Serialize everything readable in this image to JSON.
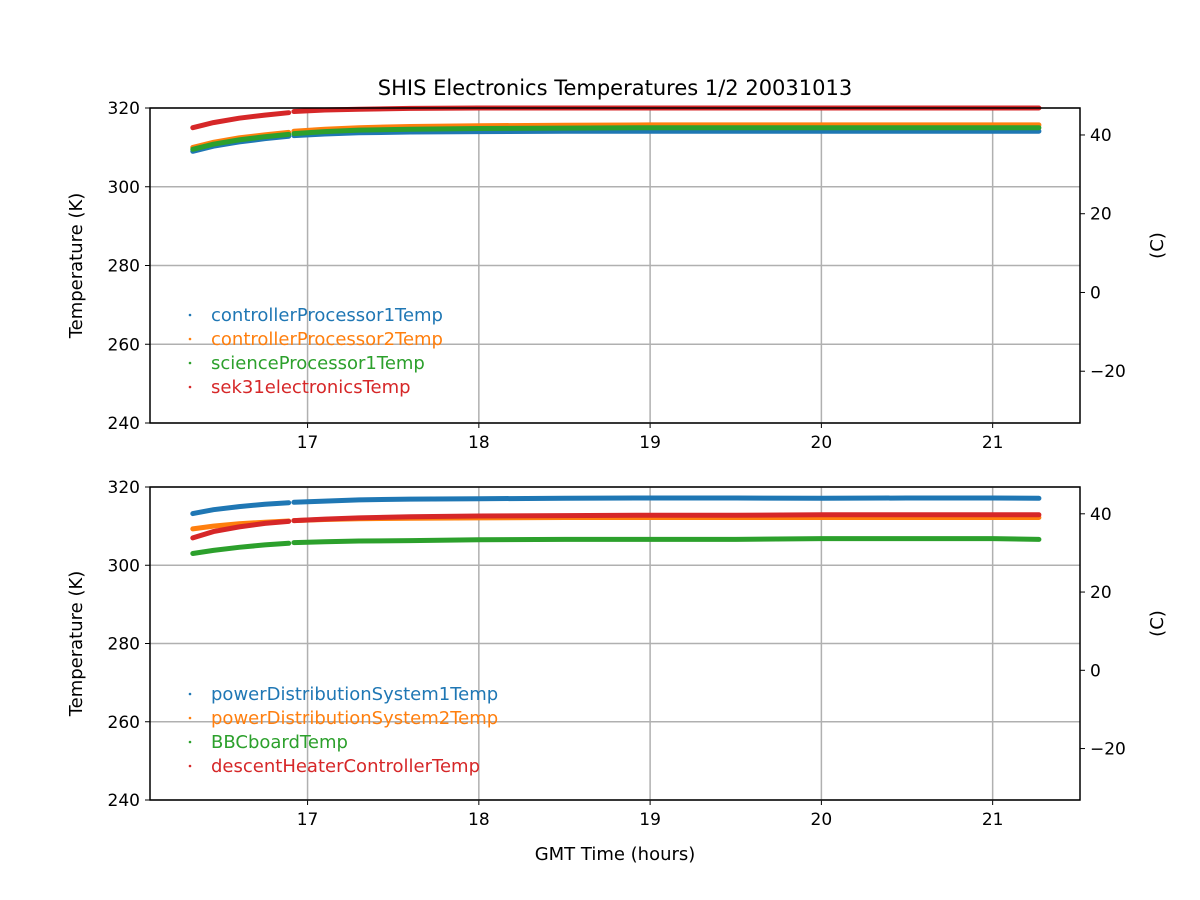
{
  "chart_data": [
    {
      "type": "scatter",
      "title": "SHIS Electronics Temperatures 1/2 20031013",
      "xlabel": "",
      "ylabel": "Temperature (K)",
      "ylabel_right": "(C)",
      "xlim": [
        16.08,
        21.51
      ],
      "ylim": [
        240,
        320
      ],
      "xticks": [
        17,
        18,
        19,
        20,
        21
      ],
      "yticks": [
        240,
        260,
        280,
        300,
        320
      ],
      "yticks_right": [
        -20,
        0,
        20,
        40
      ],
      "grid": true,
      "legend_placement": "lower-left",
      "x": [
        16.33,
        16.45,
        16.6,
        16.75,
        16.89,
        null,
        16.92,
        17.1,
        17.3,
        17.6,
        18,
        18.5,
        19,
        19.5,
        20,
        20.5,
        21,
        21.27
      ],
      "series": [
        {
          "name": "controllerProcessor1Temp",
          "color": "#1f77b4",
          "values": [
            309,
            310.3,
            311.4,
            312.2,
            312.8,
            null,
            313,
            313.4,
            313.7,
            313.9,
            314,
            314.1,
            314.1,
            314.1,
            314.1,
            314.1,
            314.1,
            314.1
          ]
        },
        {
          "name": "controllerProcessor2Temp",
          "color": "#ff7f0e",
          "values": [
            310,
            311.3,
            312.4,
            313.2,
            313.8,
            null,
            314.1,
            314.6,
            315,
            315.3,
            315.5,
            315.6,
            315.7,
            315.7,
            315.7,
            315.7,
            315.7,
            315.7
          ]
        },
        {
          "name": "scienceProcessor1Temp",
          "color": "#2ca02c",
          "values": [
            309.5,
            310.8,
            311.9,
            312.7,
            313.3,
            null,
            313.5,
            314,
            314.4,
            314.6,
            314.8,
            314.9,
            315,
            315,
            315,
            315,
            315,
            315
          ]
        },
        {
          "name": "sek31electronicsTemp",
          "color": "#d62728",
          "values": [
            315,
            316.3,
            317.4,
            318.2,
            318.8,
            null,
            319.1,
            319.5,
            319.7,
            319.9,
            320,
            320,
            320,
            320,
            320,
            320,
            320,
            320
          ]
        }
      ]
    },
    {
      "type": "scatter",
      "title": "",
      "xlabel": "GMT Time (hours)",
      "ylabel": "Temperature (K)",
      "ylabel_right": "(C)",
      "xlim": [
        16.08,
        21.51
      ],
      "ylim": [
        240,
        320
      ],
      "xticks": [
        17,
        18,
        19,
        20,
        21
      ],
      "yticks": [
        240,
        260,
        280,
        300,
        320
      ],
      "yticks_right": [
        -20,
        0,
        20,
        40
      ],
      "grid": true,
      "legend_placement": "lower-left",
      "x": [
        16.33,
        16.45,
        16.6,
        16.75,
        16.89,
        null,
        16.92,
        17.1,
        17.3,
        17.6,
        18,
        18.5,
        19,
        19.5,
        20,
        20.5,
        21,
        21.27
      ],
      "series": [
        {
          "name": "powerDistributionSystem1Temp",
          "color": "#1f77b4",
          "values": [
            313.2,
            314.2,
            315,
            315.6,
            316,
            null,
            316.1,
            316.4,
            316.7,
            316.9,
            317,
            317.1,
            317.2,
            317.2,
            317.1,
            317.2,
            317.2,
            317.1
          ]
        },
        {
          "name": "powerDistributionSystem2Temp",
          "color": "#ff7f0e",
          "values": [
            309.3,
            310,
            310.6,
            311,
            311.3,
            null,
            311.4,
            311.7,
            311.9,
            312,
            312.1,
            312.2,
            312.2,
            312.2,
            312.2,
            312.2,
            312.2,
            312.2
          ]
        },
        {
          "name": "BBCboardTemp",
          "color": "#2ca02c",
          "values": [
            303,
            303.8,
            304.6,
            305.2,
            305.6,
            null,
            305.8,
            306,
            306.2,
            306.3,
            306.5,
            306.6,
            306.6,
            306.6,
            306.8,
            306.8,
            306.8,
            306.6
          ]
        },
        {
          "name": "descentHeaterControllerTemp",
          "color": "#d62728",
          "values": [
            307,
            308.6,
            309.8,
            310.7,
            311.2,
            null,
            311.4,
            311.8,
            312.1,
            312.4,
            312.6,
            312.7,
            312.8,
            312.8,
            312.9,
            312.9,
            312.9,
            312.9
          ]
        }
      ]
    }
  ]
}
